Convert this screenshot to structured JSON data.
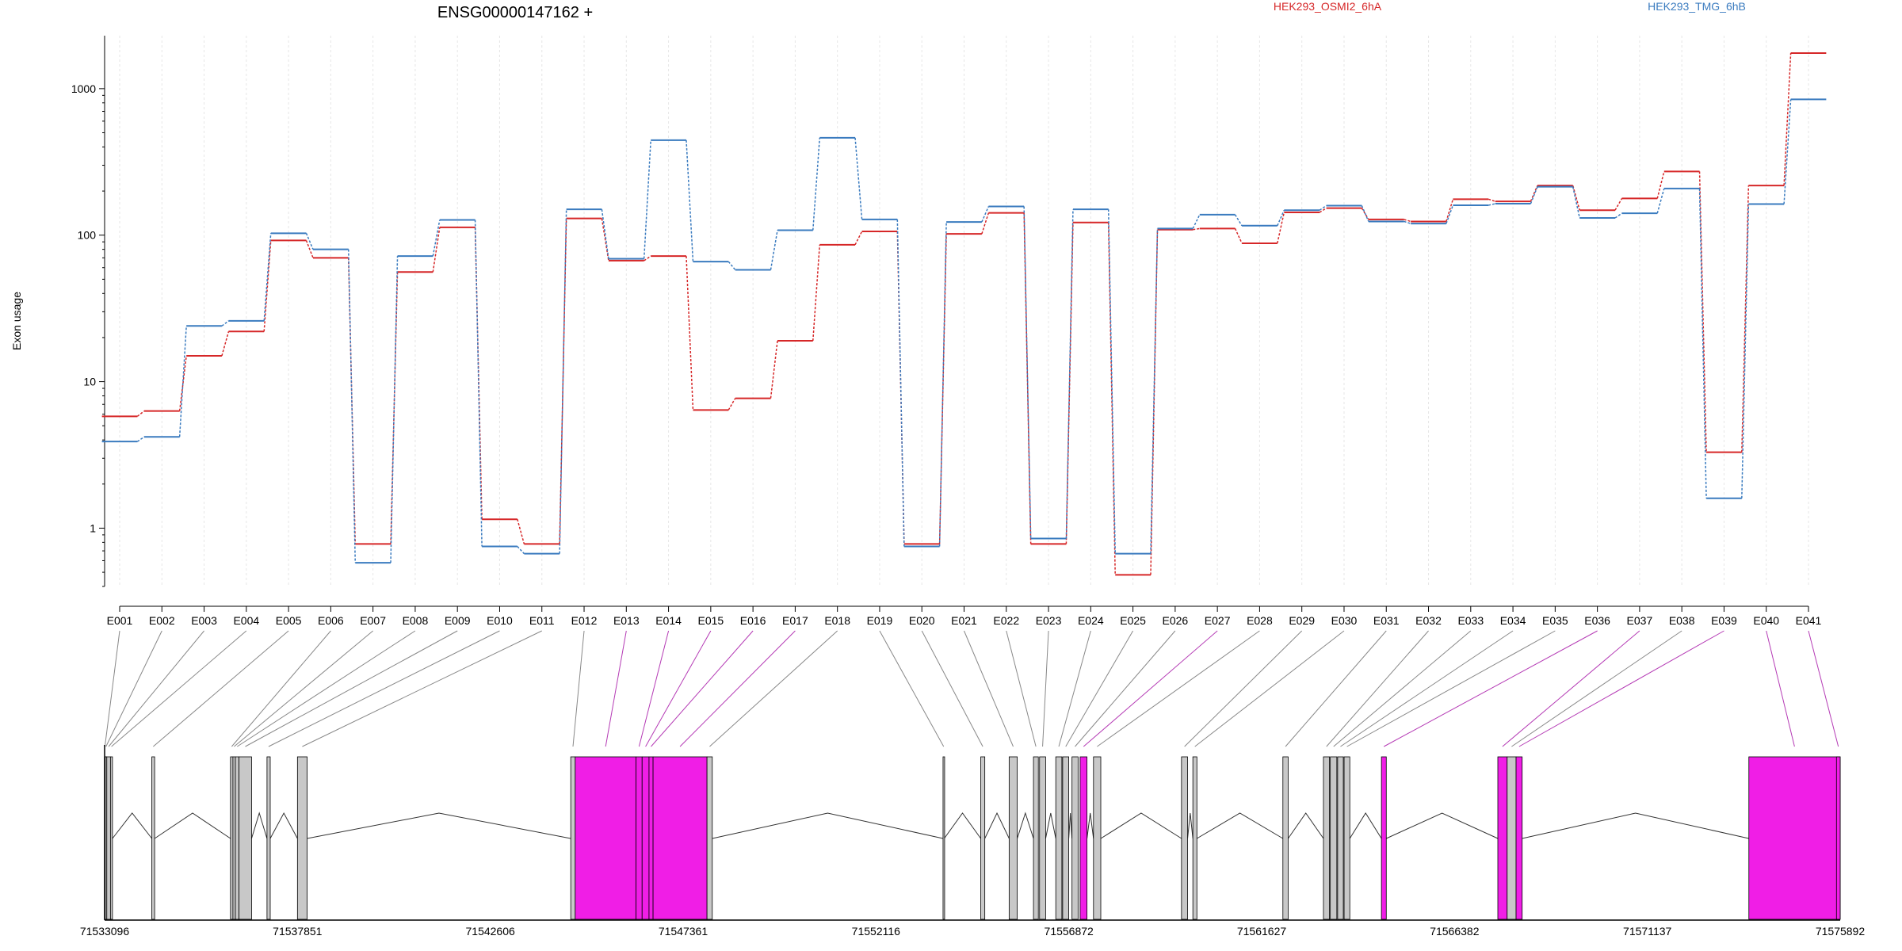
{
  "title": "ENSG00000147162 +",
  "ylabel": "Exon usage",
  "colors": {
    "HEK293_OSMI2_6hA": "#d62728",
    "HEK293_TMG_6hB": "#3a7bbf",
    "highlight": "#f01ee6",
    "exon_default": "#c8c8c8"
  },
  "chart_data": {
    "type": "line",
    "yscale": "log",
    "ylim": [
      0.4,
      2300
    ],
    "yticks": [
      1,
      10,
      100,
      1000
    ],
    "ytick_labels": [
      "1",
      "10",
      "100",
      "1000"
    ],
    "categories": [
      "E001",
      "E002",
      "E003",
      "E004",
      "E005",
      "E006",
      "E007",
      "E008",
      "E009",
      "E010",
      "E011",
      "E012",
      "E013",
      "E014",
      "E015",
      "E016",
      "E017",
      "E018",
      "E019",
      "E020",
      "E021",
      "E022",
      "E023",
      "E024",
      "E025",
      "E026",
      "E027",
      "E028",
      "E029",
      "E030",
      "E031",
      "E032",
      "E033",
      "E034",
      "E035",
      "E036",
      "E037",
      "E038",
      "E039",
      "E040",
      "E041"
    ],
    "series": [
      {
        "name": "HEK293_OSMI2_6hA",
        "color": "#d62728",
        "values": [
          5.8,
          6.3,
          15,
          22,
          92,
          70,
          0.78,
          56,
          113,
          1.15,
          0.78,
          130,
          67,
          72,
          6.4,
          7.7,
          19,
          86,
          106,
          0.78,
          102,
          142,
          0.78,
          122,
          0.48,
          109,
          111,
          88,
          143,
          153,
          128,
          124,
          176,
          170,
          218,
          148,
          178,
          272,
          3.3,
          218,
          1750
        ]
      },
      {
        "name": "HEK293_TMG_6hB",
        "color": "#3a7bbf",
        "values": [
          3.9,
          4.2,
          24,
          26,
          103,
          80,
          0.58,
          72,
          127,
          0.75,
          0.67,
          150,
          69,
          445,
          66,
          58,
          108,
          462,
          128,
          0.75,
          123,
          157,
          0.85,
          150,
          0.67,
          111,
          138,
          116,
          148,
          159,
          124,
          120,
          160,
          164,
          214,
          131,
          141,
          208,
          1.6,
          163,
          845
        ]
      }
    ],
    "gene_axis": {
      "ticks": [
        "71533096",
        "71537851",
        "71542606",
        "71547361",
        "71552116",
        "71556872",
        "71561627",
        "71566382",
        "71571137",
        "71575892"
      ],
      "start": 71533096,
      "end": 71575892
    },
    "exons": [
      {
        "id": "E001",
        "start": 71533096,
        "end": 71533110,
        "highlight": false
      },
      {
        "id": "E002",
        "start": 71533110,
        "end": 71533150,
        "highlight": false
      },
      {
        "id": "E003",
        "start": 71533150,
        "end": 71533240,
        "highlight": false
      },
      {
        "id": "E004",
        "start": 71533240,
        "end": 71533290,
        "highlight": false
      },
      {
        "id": "E005",
        "start": 71534260,
        "end": 71534330,
        "highlight": false
      },
      {
        "id": "E006",
        "start": 71536200,
        "end": 71536260,
        "highlight": false
      },
      {
        "id": "E007",
        "start": 71536260,
        "end": 71536320,
        "highlight": false
      },
      {
        "id": "E008",
        "start": 71536320,
        "end": 71536410,
        "highlight": false
      },
      {
        "id": "E009",
        "start": 71536410,
        "end": 71536720,
        "highlight": false
      },
      {
        "id": "E010",
        "start": 71537100,
        "end": 71537180,
        "highlight": false
      },
      {
        "id": "E011",
        "start": 71537851,
        "end": 71538090,
        "highlight": false
      },
      {
        "id": "E012",
        "start": 71544590,
        "end": 71544700,
        "highlight": false
      },
      {
        "id": "E013",
        "start": 71544700,
        "end": 71546200,
        "highlight": true
      },
      {
        "id": "E014",
        "start": 71546200,
        "end": 71546350,
        "highlight": true
      },
      {
        "id": "E015",
        "start": 71546350,
        "end": 71546520,
        "highlight": true
      },
      {
        "id": "E016",
        "start": 71546520,
        "end": 71546620,
        "highlight": true
      },
      {
        "id": "E017",
        "start": 71546620,
        "end": 71547950,
        "highlight": true
      },
      {
        "id": "E018",
        "start": 71547950,
        "end": 71548080,
        "highlight": false
      },
      {
        "id": "E019",
        "start": 71553770,
        "end": 71553800,
        "highlight": false
      },
      {
        "id": "E020",
        "start": 71554700,
        "end": 71554800,
        "highlight": false
      },
      {
        "id": "E021",
        "start": 71555400,
        "end": 71555600,
        "highlight": false
      },
      {
        "id": "E022",
        "start": 71556000,
        "end": 71556120,
        "highlight": false
      },
      {
        "id": "E023",
        "start": 71556150,
        "end": 71556300,
        "highlight": false
      },
      {
        "id": "E024",
        "start": 71556550,
        "end": 71556700,
        "highlight": false
      },
      {
        "id": "E025",
        "start": 71556720,
        "end": 71556870,
        "highlight": false
      },
      {
        "id": "E026",
        "start": 71556950,
        "end": 71557100,
        "highlight": false
      },
      {
        "id": "E027",
        "start": 71557150,
        "end": 71557320,
        "highlight": true
      },
      {
        "id": "E028",
        "start": 71557480,
        "end": 71557660,
        "highlight": false
      },
      {
        "id": "E029",
        "start": 71559650,
        "end": 71559800,
        "highlight": false
      },
      {
        "id": "E030",
        "start": 71559930,
        "end": 71560030,
        "highlight": false
      },
      {
        "id": "E031",
        "start": 71562150,
        "end": 71562280,
        "highlight": false
      },
      {
        "id": "E032",
        "start": 71563150,
        "end": 71563300,
        "highlight": false
      },
      {
        "id": "E033",
        "start": 71563320,
        "end": 71563480,
        "highlight": false
      },
      {
        "id": "E034",
        "start": 71563500,
        "end": 71563640,
        "highlight": false
      },
      {
        "id": "E035",
        "start": 71563660,
        "end": 71563800,
        "highlight": false
      },
      {
        "id": "E036",
        "start": 71564580,
        "end": 71564700,
        "highlight": true
      },
      {
        "id": "E037",
        "start": 71567450,
        "end": 71567680,
        "highlight": true
      },
      {
        "id": "E038",
        "start": 71567680,
        "end": 71567900,
        "highlight": false
      },
      {
        "id": "E039",
        "start": 71567900,
        "end": 71568050,
        "highlight": true
      },
      {
        "id": "E040",
        "start": 71573640,
        "end": 71575892,
        "highlight": true
      },
      {
        "id": "E041",
        "start": 71575800,
        "end": 71575892,
        "highlight": true
      }
    ]
  }
}
